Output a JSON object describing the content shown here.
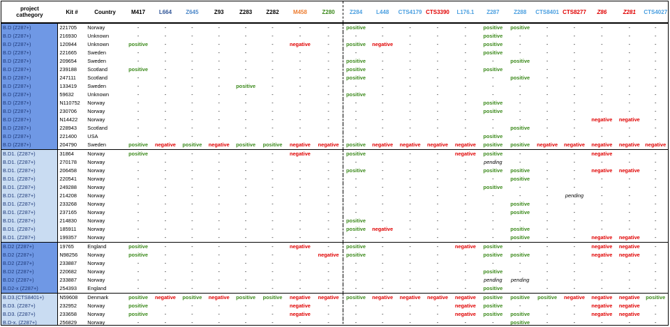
{
  "table": {
    "headers": [
      {
        "label": "project\ncathegory",
        "color": "#000000",
        "italic": false
      },
      {
        "label": "Kit #",
        "color": "#000000",
        "italic": false
      },
      {
        "label": "Country",
        "color": "#000000",
        "italic": false
      },
      {
        "label": "M417",
        "color": "#000000",
        "italic": false
      },
      {
        "label": "L664",
        "color": "#2f5597",
        "italic": false
      },
      {
        "label": "Z645",
        "color": "#4a86c8",
        "italic": false
      },
      {
        "label": "Z93",
        "color": "#000000",
        "italic": false
      },
      {
        "label": "Z283",
        "color": "#000000",
        "italic": false
      },
      {
        "label": "Z282",
        "color": "#000000",
        "italic": false
      },
      {
        "label": "M458",
        "color": "#ed7d31",
        "italic": false
      },
      {
        "label": "Z280",
        "color": "#3c8a1c",
        "italic": false
      },
      {
        "label": "Z284",
        "color": "#4a9fe0",
        "italic": false
      },
      {
        "label": "L448",
        "color": "#4a9fe0",
        "italic": false
      },
      {
        "label": "CTS4179",
        "color": "#4a9fe0",
        "italic": false
      },
      {
        "label": "CTS3390",
        "color": "#e00000",
        "italic": false
      },
      {
        "label": "L176.1",
        "color": "#4a9fe0",
        "italic": false
      },
      {
        "label": "Z287",
        "color": "#4a9fe0",
        "italic": false
      },
      {
        "label": "Z288",
        "color": "#4a9fe0",
        "italic": false
      },
      {
        "label": "CTS8401",
        "color": "#4a9fe0",
        "italic": false
      },
      {
        "label": "CTS8277",
        "color": "#e00000",
        "italic": false
      },
      {
        "label": "Z86",
        "color": "#e00000",
        "italic": true
      },
      {
        "label": "Z281",
        "color": "#e00000",
        "italic": true
      },
      {
        "label": "CTS4027",
        "color": "#4a9fe0",
        "italic": false
      }
    ],
    "rows": [
      {
        "cat": "B.D (Z287+)",
        "kit": "221705",
        "country": "Norway",
        "shade": 0,
        "v": [
          "-",
          "-",
          "-",
          "-",
          "-",
          "-",
          "-",
          "-",
          "positive",
          "-",
          "-",
          "-",
          "-",
          "positive",
          "positive",
          "-",
          "-",
          "-",
          "-",
          "-"
        ]
      },
      {
        "cat": "B.D (Z287+)",
        "kit": "216930",
        "country": "Unknown",
        "shade": 0,
        "v": [
          "-",
          "-",
          "-",
          "-",
          "-",
          "-",
          "-",
          "-",
          "-",
          "-",
          "-",
          "-",
          "-",
          "positive",
          "-",
          "-",
          "-",
          "-",
          "-",
          "-"
        ]
      },
      {
        "cat": "B.D (Z287+)",
        "kit": "120944",
        "country": "Unknown",
        "shade": 0,
        "v": [
          "positive",
          "-",
          "-",
          "-",
          "-",
          "-",
          "negative",
          "-",
          "positive",
          "negative",
          "-",
          "-",
          "-",
          "positive",
          "-",
          "-",
          "-",
          "-",
          "-",
          "-"
        ]
      },
      {
        "cat": "B.D (Z287+)",
        "kit": "221665",
        "country": "Sweden",
        "shade": 0,
        "v": [
          "-",
          "-",
          "-",
          "-",
          "-",
          "-",
          "-",
          "-",
          "-",
          "-",
          "-",
          "-",
          "-",
          "positive",
          "-",
          "-",
          "-",
          "-",
          "-",
          "-"
        ]
      },
      {
        "cat": "B.D (Z287+)",
        "kit": "209654",
        "country": "Sweden",
        "shade": 0,
        "v": [
          "-",
          "-",
          "-",
          "-",
          "-",
          "-",
          "-",
          "-",
          "positive",
          "-",
          "-",
          "-",
          "-",
          "-",
          "positive",
          "-",
          "-",
          "-",
          "-",
          "-"
        ]
      },
      {
        "cat": "B.D (Z287+)",
        "kit": "239188",
        "country": "Scotland",
        "shade": 0,
        "v": [
          "positive",
          "-",
          "-",
          "-",
          "-",
          "-",
          "-",
          "-",
          "positive",
          "-",
          "-",
          "-",
          "-",
          "positive",
          "-",
          "-",
          "-",
          "-",
          "-",
          "-"
        ]
      },
      {
        "cat": "B.D (Z287+)",
        "kit": "247111",
        "country": "Scotland",
        "shade": 0,
        "v": [
          "-",
          "-",
          "-",
          "-",
          "-",
          "-",
          "-",
          "-",
          "positive",
          "-",
          "-",
          "-",
          "-",
          "-",
          "positive",
          "-",
          "-",
          "-",
          "-",
          "-"
        ]
      },
      {
        "cat": "B.D (Z287+)",
        "kit": "133419",
        "country": "Sweden",
        "shade": 0,
        "v": [
          "-",
          "-",
          "-",
          "-",
          "positive",
          "-",
          "-",
          "-",
          "-",
          "-",
          "-",
          "-",
          "-",
          "-",
          "-",
          "-",
          "-",
          "-",
          "-",
          "-"
        ]
      },
      {
        "cat": "B.D (Z287+)",
        "kit": "59632",
        "country": "Unknown",
        "shade": 0,
        "v": [
          "-",
          "-",
          "-",
          "-",
          "-",
          "-",
          "-",
          "-",
          "positive",
          "-",
          "-",
          "-",
          "-",
          "-",
          "-",
          "-",
          "-",
          "-",
          "-",
          "-"
        ]
      },
      {
        "cat": "B.D (Z287+)",
        "kit": "N110752",
        "country": "Norway",
        "shade": 0,
        "v": [
          "-",
          "-",
          "-",
          "-",
          "-",
          "-",
          "-",
          "-",
          "-",
          "-",
          "-",
          "-",
          "-",
          "positive",
          "-",
          "-",
          "-",
          "-",
          "-",
          "-"
        ]
      },
      {
        "cat": "B.D (Z287+)",
        "kit": "230706",
        "country": "Norway",
        "shade": 0,
        "v": [
          "-",
          "-",
          "-",
          "-",
          "-",
          "-",
          "-",
          "-",
          "-",
          "-",
          "-",
          "-",
          "-",
          "positive",
          "-",
          "-",
          "-",
          "-",
          "-",
          "-"
        ]
      },
      {
        "cat": "B.D (Z287+)",
        "kit": "N14422",
        "country": "Norway",
        "shade": 0,
        "v": [
          "-",
          "-",
          "-",
          "-",
          "-",
          "-",
          "-",
          "-",
          "-",
          "-",
          "-",
          "-",
          "-",
          "-",
          "-",
          "-",
          "-",
          "negative",
          "negative",
          "-"
        ]
      },
      {
        "cat": "B.D (Z287+)",
        "kit": "228943",
        "country": "Scotland",
        "shade": 0,
        "v": [
          "-",
          "-",
          "-",
          "-",
          "-",
          "-",
          "-",
          "-",
          "-",
          "-",
          "-",
          "-",
          "-",
          "-",
          "positive",
          "-",
          "-",
          "-",
          "-",
          "-"
        ]
      },
      {
        "cat": "B.D (Z287+)",
        "kit": "221400",
        "country": "USA",
        "shade": 0,
        "v": [
          "-",
          "-",
          "-",
          "-",
          "-",
          "-",
          "-",
          "-",
          "-",
          "-",
          "-",
          "-",
          "-",
          "positive",
          "-",
          "-",
          "-",
          "-",
          "-",
          "-"
        ]
      },
      {
        "cat": "B.D (Z287+)",
        "kit": "204790",
        "country": "Sweden",
        "shade": 0,
        "v": [
          "positive",
          "negative",
          "positive",
          "negative",
          "positive",
          "positive",
          "negative",
          "negative",
          "positive",
          "negative",
          "negative",
          "negative",
          "negative",
          "positive",
          "positive",
          "negative",
          "negative",
          "negative",
          "negative",
          "negative"
        ]
      },
      {
        "cat": "B.D1. (Z287+)",
        "kit": "31864",
        "country": "Norway",
        "shade": 1,
        "v": [
          "positive",
          "-",
          "-",
          "-",
          "-",
          "-",
          "negative",
          "-",
          "positive",
          "-",
          "-",
          "-",
          "negative",
          "positive",
          "-",
          "-",
          "-",
          "negative",
          "-",
          "-"
        ]
      },
      {
        "cat": "B.D1. (Z287+)",
        "kit": "270178",
        "country": "Norway",
        "shade": 1,
        "v": [
          "-",
          "-",
          "-",
          "-",
          "-",
          "-",
          "-",
          "-",
          "-",
          "-",
          "-",
          "-",
          "-",
          "pending",
          "-",
          "-",
          "-",
          "-",
          "-",
          "-"
        ]
      },
      {
        "cat": "B.D1. (Z287+)",
        "kit": "206458",
        "country": "Norway",
        "shade": 1,
        "v": [
          "-",
          "-",
          "-",
          "-",
          "-",
          "-",
          "-",
          "-",
          "positive",
          "-",
          "-",
          "-",
          "-",
          "positive",
          "positive",
          "-",
          "-",
          "negative",
          "negative",
          "-"
        ]
      },
      {
        "cat": "B.D1. (Z287+)",
        "kit": "220541",
        "country": "Norway",
        "shade": 1,
        "v": [
          "-",
          "-",
          "-",
          "-",
          "-",
          "-",
          "-",
          "-",
          "-",
          "-",
          "-",
          "-",
          "-",
          "-",
          "positive",
          "-",
          "-",
          "-",
          "-",
          "-"
        ]
      },
      {
        "cat": "B.D1. (Z287+)",
        "kit": "249288",
        "country": "Norway",
        "shade": 1,
        "v": [
          "-",
          "-",
          "-",
          "-",
          "-",
          "-",
          "-",
          "-",
          "-",
          "-",
          "-",
          "-",
          "-",
          "positive",
          "-",
          "-",
          "-",
          "-",
          "-",
          "-"
        ]
      },
      {
        "cat": "B.D1. (Z287+)",
        "kit": "214208",
        "country": "Norway",
        "shade": 1,
        "v": [
          "-",
          "-",
          "-",
          "-",
          "-",
          "-",
          "-",
          "-",
          "-",
          "-",
          "-",
          "-",
          "-",
          "-",
          "-",
          "-",
          "pending",
          "-",
          "-",
          "-"
        ]
      },
      {
        "cat": "B.D1. (Z287+)",
        "kit": "233268",
        "country": "Norway",
        "shade": 1,
        "v": [
          "-",
          "-",
          "-",
          "-",
          "-",
          "-",
          "-",
          "-",
          "-",
          "-",
          "-",
          "-",
          "-",
          "-",
          "positive",
          "-",
          "-",
          "-",
          "-",
          "-"
        ]
      },
      {
        "cat": "B.D1. (Z287+)",
        "kit": "237165",
        "country": "Norway",
        "shade": 1,
        "v": [
          "-",
          "-",
          "-",
          "-",
          "-",
          "-",
          "-",
          "-",
          "-",
          "-",
          "-",
          "-",
          "-",
          "-",
          "positive",
          "-",
          "-",
          "-",
          "-",
          "-"
        ]
      },
      {
        "cat": "B.D1. (Z287+)",
        "kit": "214830",
        "country": "Norway",
        "shade": 1,
        "v": [
          "-",
          "-",
          "-",
          "-",
          "-",
          "-",
          "-",
          "-",
          "positive",
          "-",
          "-",
          "-",
          "-",
          "-",
          "-",
          "-",
          "-",
          "-",
          "-",
          "-"
        ]
      },
      {
        "cat": "B.D1. (Z287+)",
        "kit": "185911",
        "country": "Norway",
        "shade": 1,
        "v": [
          "-",
          "-",
          "-",
          "-",
          "-",
          "-",
          "-",
          "-",
          "positive",
          "negative",
          "-",
          "-",
          "-",
          "-",
          "positive",
          "-",
          "-",
          "-",
          "-",
          "-"
        ]
      },
      {
        "cat": "B.D1. (Z287+)",
        "kit": "199357",
        "country": "Norway",
        "shade": 1,
        "v": [
          "-",
          "-",
          "-",
          "-",
          "-",
          "-",
          "-",
          "-",
          "-",
          "-",
          "-",
          "-",
          "-",
          "-",
          "positive",
          "-",
          "-",
          "negative",
          "negative",
          "-"
        ]
      },
      {
        "cat": "B.D2 (Z287+)",
        "kit": "19765",
        "country": "England",
        "shade": 2,
        "v": [
          "positive",
          "-",
          "-",
          "-",
          "-",
          "-",
          "negative",
          "-",
          "positive",
          "-",
          "-",
          "-",
          "negative",
          "positive",
          "-",
          "-",
          "-",
          "negative",
          "negative",
          "-"
        ]
      },
      {
        "cat": "B.D2 (Z287+)",
        "kit": "N98256",
        "country": "Norway",
        "shade": 2,
        "v": [
          "positive",
          "-",
          "-",
          "-",
          "-",
          "-",
          "-",
          "negative",
          "positive",
          "-",
          "-",
          "-",
          "-",
          "positive",
          "positive",
          "-",
          "-",
          "negative",
          "negative",
          "-"
        ]
      },
      {
        "cat": "B.D2 (Z287+)",
        "kit": "233887",
        "country": "Norway",
        "shade": 2,
        "v": [
          "-",
          "-",
          "-",
          "-",
          "-",
          "-",
          "-",
          "-",
          "-",
          "-",
          "-",
          "-",
          "-",
          "-",
          "-",
          "-",
          "-",
          "-",
          "-",
          "-"
        ]
      },
      {
        "cat": "B.D2 (Z287+)",
        "kit": "220682",
        "country": "Norway",
        "shade": 2,
        "v": [
          "-",
          "-",
          "-",
          "-",
          "-",
          "-",
          "-",
          "-",
          "-",
          "-",
          "-",
          "-",
          "-",
          "positive",
          "-",
          "-",
          "-",
          "-",
          "-",
          "-"
        ]
      },
      {
        "cat": "B.D2 (Z287+)",
        "kit": "233887",
        "country": "Norway",
        "shade": 2,
        "v": [
          "-",
          "-",
          "-",
          "-",
          "-",
          "-",
          "-",
          "-",
          "-",
          "-",
          "-",
          "-",
          "-",
          "pending",
          "pending",
          "-",
          "-",
          "-",
          "-",
          "-"
        ]
      },
      {
        "cat": "B.D2-x (Z287+)",
        "kit": "254393",
        "country": "England",
        "shade": 2,
        "v": [
          "-",
          "-",
          "-",
          "-",
          "-",
          "-",
          "-",
          "-",
          "-",
          "-",
          "-",
          "-",
          "-",
          "positive",
          "-",
          "-",
          "-",
          "-",
          "-",
          "-"
        ]
      },
      {
        "cat": "B.D3.(CTS8401+)",
        "kit": "N59608",
        "country": "Denmark",
        "shade": 3,
        "v": [
          "positive",
          "negative",
          "positive",
          "negative",
          "positive",
          "positive",
          "negative",
          "negative",
          "positive",
          "negative",
          "negative",
          "negative",
          "negative",
          "positive",
          "positive",
          "positive",
          "negative",
          "negative",
          "negative",
          "positive"
        ]
      },
      {
        "cat": "B.D3. (Z287+)",
        "kit": "232952",
        "country": "Norway",
        "shade": 3,
        "v": [
          "positive",
          "-",
          "-",
          "-",
          "-",
          "-",
          "negative",
          "-",
          "-",
          "-",
          "-",
          "-",
          "negative",
          "positive",
          "-",
          "-",
          "-",
          "negative",
          "negative",
          "-"
        ]
      },
      {
        "cat": "B.D3. (Z287+)",
        "kit": "233658",
        "country": "Norway",
        "shade": 3,
        "v": [
          "positive",
          "-",
          "-",
          "-",
          "-",
          "-",
          "negative",
          "-",
          "-",
          "-",
          "-",
          "-",
          "negative",
          "positive",
          "positive",
          "-",
          "-",
          "negative",
          "negative",
          "-"
        ]
      },
      {
        "cat": "B.D-x. (Z287+)",
        "kit": "256829",
        "country": "Norway",
        "shade": 3,
        "v": [
          "-",
          "-",
          "-",
          "-",
          "-",
          "-",
          "-",
          "-",
          "-",
          "-",
          "-",
          "-",
          "-",
          "-",
          "positive",
          "-",
          "-",
          "-",
          "-",
          "-"
        ]
      }
    ]
  },
  "legend_colors": {
    "positive": "#3c8a1c",
    "negative": "#e00000",
    "cat_dark": "#6f98e5",
    "cat_light": "#c9dcf2"
  }
}
